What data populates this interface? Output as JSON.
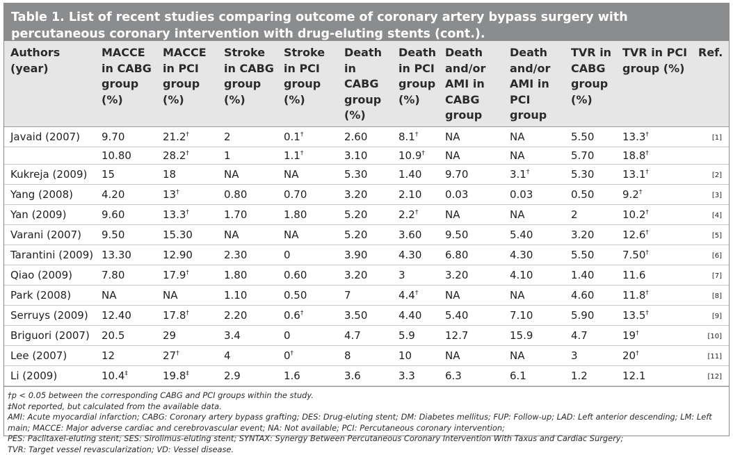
{
  "title": "Table 1. List of recent studies comparing outcome of coronary artery bypass surgery with percutaneous coronary intervention with drug-eluting stents (cont.).",
  "headers": [
    "Authors (year)",
    "MACCE in CABG group (%)",
    "MACCE in PCI group (%)",
    "Stroke in CABG group (%)",
    "Stroke in PCI group (%)",
    "Death in CABG group (%)",
    "Death in PCI group (%)",
    "Death and/or AMI in CABG group",
    "Death and/or AMI in PCI group",
    "TVR in CABG group (%)",
    "TVR in PCI group (%)",
    "Ref."
  ],
  "rows": [
    {
      "c": [
        "Javaid (2007)",
        "9.70",
        "21.2",
        "2",
        "0.1",
        "2.60",
        "8.1",
        "NA",
        "NA",
        "5.50",
        "13.3"
      ],
      "s": [
        "",
        "",
        "†",
        "",
        "†",
        "",
        "†",
        "",
        "",
        "",
        "†"
      ],
      "ref": "[1]"
    },
    {
      "c": [
        "",
        "10.80",
        "28.2",
        "1",
        "1.1",
        "3.10",
        "10.9",
        "NA",
        "NA",
        "5.70",
        "18.8"
      ],
      "s": [
        "",
        "",
        "†",
        "",
        "†",
        "",
        "†",
        "",
        "",
        "",
        "†"
      ],
      "ref": ""
    },
    {
      "c": [
        "Kukreja (2009)",
        "15",
        "18",
        "NA",
        "NA",
        "5.30",
        "1.40",
        "9.70",
        "3.1",
        "5.30",
        "13.1"
      ],
      "s": [
        "",
        "",
        "",
        "",
        "",
        "",
        "",
        "",
        "†",
        "",
        "†"
      ],
      "ref": "[2]"
    },
    {
      "c": [
        "Yang (2008)",
        "4.20",
        "13",
        "0.80",
        "0.70",
        "3.20",
        "2.10",
        "0.03",
        "0.03",
        "0.50",
        "9.2"
      ],
      "s": [
        "",
        "",
        "†",
        "",
        "",
        "",
        "",
        "",
        "",
        "",
        "†"
      ],
      "ref": "[3]"
    },
    {
      "c": [
        "Yan (2009)",
        "9.60",
        "13.3",
        "1.70",
        "1.80",
        "5.20",
        "2.2",
        "NA",
        "NA",
        "2",
        "10.2"
      ],
      "s": [
        "",
        "",
        "†",
        "",
        "",
        "",
        "†",
        "",
        "",
        "",
        "†"
      ],
      "ref": "[4]"
    },
    {
      "c": [
        "Varani (2007)",
        "9.50",
        "15.30",
        "NA",
        "NA",
        "5.20",
        "3.60",
        "9.50",
        "5.40",
        "3.20",
        "12.6"
      ],
      "s": [
        "",
        "",
        "",
        "",
        "",
        "",
        "",
        "",
        "",
        "",
        "†"
      ],
      "ref": "[5]"
    },
    {
      "c": [
        "Tarantini (2009)",
        "13.30",
        "12.90",
        "2.30",
        "0",
        "3.90",
        "4.30",
        "6.80",
        "4.30",
        "5.50",
        "7.50"
      ],
      "s": [
        "",
        "",
        "",
        "",
        "",
        "",
        "",
        "",
        "",
        "",
        "†"
      ],
      "ref": "[6]"
    },
    {
      "c": [
        "Qiao (2009)",
        "7.80",
        "17.9",
        "1.80",
        "0.60",
        "3.20",
        "3",
        "3.20",
        "4.10",
        "1.40",
        "11.6"
      ],
      "s": [
        "",
        "",
        "†",
        "",
        "",
        "",
        "",
        "",
        "",
        "",
        ""
      ],
      "ref": "[7]"
    },
    {
      "c": [
        "Park (2008)",
        "NA",
        "NA",
        "1.10",
        "0.50",
        "7",
        "4.4",
        "NA",
        "NA",
        "4.60",
        "11.8"
      ],
      "s": [
        "",
        "",
        "",
        "",
        "",
        "",
        "†",
        "",
        "",
        "",
        "†"
      ],
      "ref": "[8]"
    },
    {
      "c": [
        "Serruys (2009)",
        "12.40",
        "17.8",
        "2.20",
        "0.6",
        "3.50",
        "4.40",
        "5.40",
        "7.10",
        "5.90",
        "13.5"
      ],
      "s": [
        "",
        "",
        "†",
        "",
        "†",
        "",
        "",
        "",
        "",
        "",
        "†"
      ],
      "ref": "[9]"
    },
    {
      "c": [
        "Briguori (2007)",
        "20.5",
        "29",
        "3.4",
        "0",
        "4.7",
        "5.9",
        "12.7",
        "15.9",
        "4.7",
        "19"
      ],
      "s": [
        "",
        "",
        "",
        "",
        "",
        "",
        "",
        "",
        "",
        "",
        "†"
      ],
      "ref": "[10]"
    },
    {
      "c": [
        "Lee (2007)",
        "12",
        "27",
        "4",
        "0",
        "8",
        "10",
        "NA",
        "NA",
        "3",
        "20"
      ],
      "s": [
        "",
        "",
        "†",
        "",
        "†",
        "",
        "",
        "",
        "",
        "",
        "†"
      ],
      "ref": "[11]"
    },
    {
      "c": [
        "Li (2009)",
        "10.4",
        "19.8",
        "2.9",
        "1.6",
        "3.6",
        "3.3",
        "6.3",
        "6.1",
        "1.2",
        "12.1"
      ],
      "s": [
        "",
        "‡",
        "‡",
        "",
        "",
        "",
        "",
        "",
        "",
        "",
        ""
      ],
      "ref": "[12]"
    }
  ],
  "footnotes": [
    "†p < 0.05 between the corresponding CABG and PCI groups within the study.",
    "‡Not reported, but calculated from the available data.",
    "AMI: Acute myocardial infarction; CABG: Coronary artery bypass grafting; DES: Drug-eluting stent; DM: Diabetes mellitus; FUP: Follow-up; LAD: Left anterior descending; LM: Left main; MACCE: Major adverse cardiac and cerebrovascular event; NA: Not available; PCI: Percutaneous coronary intervention;",
    "PES: Paclitaxel-eluting stent; SES: Sirolimus-eluting stent; SYNTAX: Synergy Between Percutaneous Coronary Intervention With Taxus and Cardiac Surgery;",
    "TVR: Target vessel revascularization; VD: Vessel disease."
  ],
  "colors": {
    "title_bg": "#8a8c8e",
    "header_bg": "#e6e6e6"
  }
}
